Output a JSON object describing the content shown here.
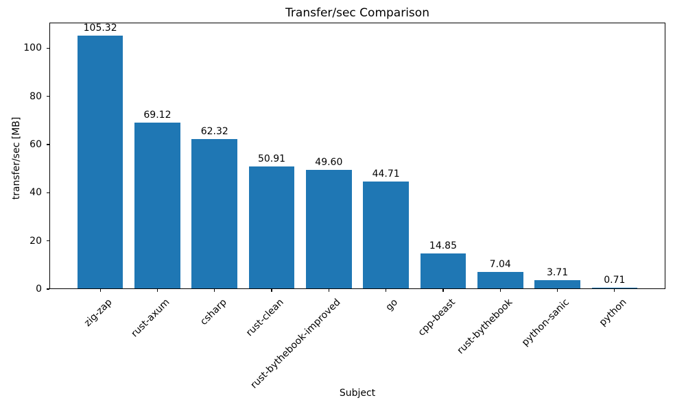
{
  "chart_data": {
    "type": "bar",
    "title": "Transfer/sec Comparison",
    "xlabel": "Subject",
    "ylabel": "transfer/sec [MB]",
    "categories": [
      "zig-zap",
      "rust-axum",
      "csharp",
      "rust-clean",
      "rust-bythebook-improved",
      "go",
      "cpp-beast",
      "rust-bythebook",
      "python-sanic",
      "python"
    ],
    "values": [
      105.32,
      69.12,
      62.32,
      50.91,
      49.6,
      44.71,
      14.85,
      7.04,
      3.71,
      0.71
    ],
    "value_labels": [
      "105.32",
      "69.12",
      "62.32",
      "50.91",
      "49.60",
      "44.71",
      "14.85",
      "7.04",
      "3.71",
      "0.71"
    ],
    "yticks": [
      0,
      20,
      40,
      60,
      80,
      100
    ],
    "ylim": [
      0,
      110.59
    ],
    "bar_color": "#1f77b4",
    "grid": false,
    "legend_position": "none",
    "x_tick_label_rotation_deg": 45
  }
}
